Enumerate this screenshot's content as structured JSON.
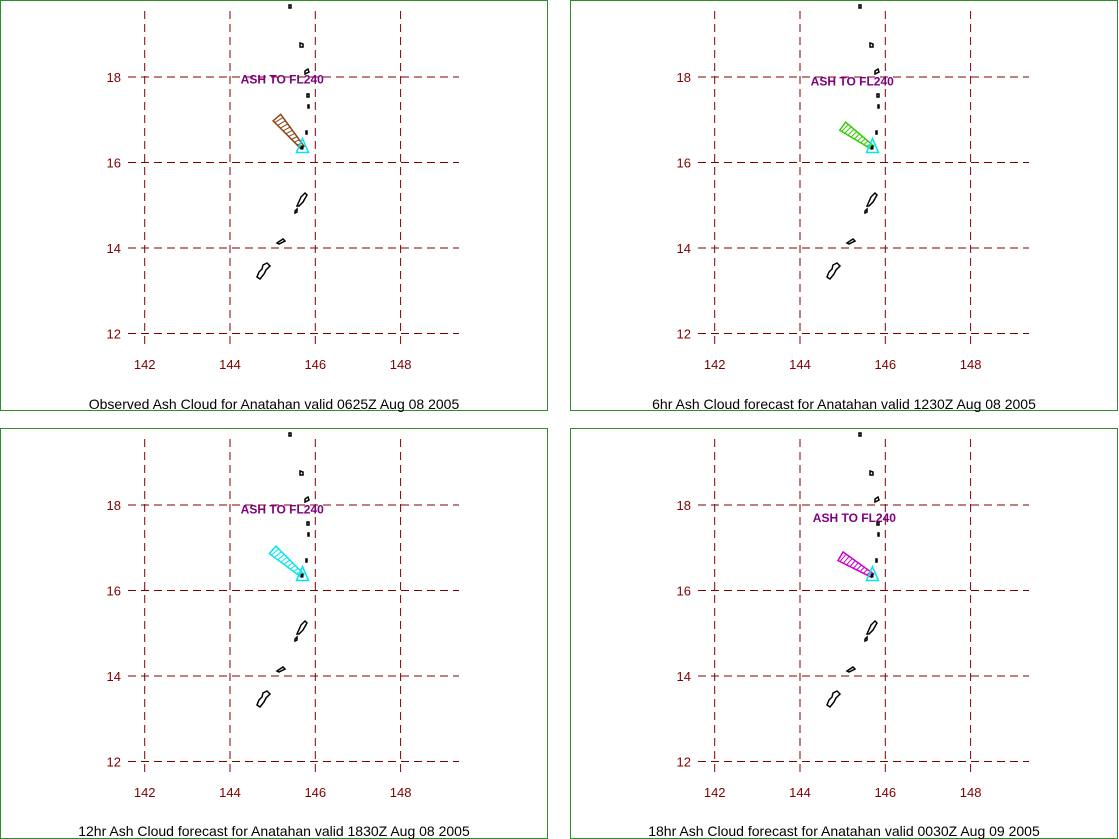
{
  "map": {
    "lon_ticks": [
      "142",
      "144",
      "146",
      "148"
    ],
    "lat_ticks": [
      "18",
      "16",
      "14",
      "12"
    ],
    "lon_values": [
      142,
      144,
      146,
      148
    ],
    "lat_values": [
      18,
      16,
      14,
      12
    ],
    "grid_color": "#800000",
    "volcano_marker_color": "#00e5ee"
  },
  "panels": [
    {
      "caption": "Observed Ash Cloud for Anatahan valid 0625Z Aug 08 2005",
      "ash_label": "ASH TO FL240",
      "cloud_color": "#8b4513",
      "cloud_tip": [
        145.1,
        17.05
      ],
      "label_pos": [
        144.25,
        17.85
      ]
    },
    {
      "caption": "6hr Ash Cloud forecast for Anatahan valid 1230Z Aug 08 2005",
      "ash_label": "ASH TO FL240",
      "cloud_color": "#33cc00",
      "cloud_tip": [
        145.0,
        16.85
      ],
      "label_pos": [
        144.25,
        17.8
      ]
    },
    {
      "caption": "12hr Ash Cloud forecast for Anatahan valid 1830Z Aug 08 2005",
      "ash_label": "ASH TO FL240",
      "cloud_color": "#00e5ee",
      "cloud_tip": [
        145.0,
        16.95
      ],
      "label_pos": [
        144.25,
        17.8
      ]
    },
    {
      "caption": "18hr Ash Cloud forecast for Anatahan valid 0030Z Aug 09 2005",
      "ash_label": "ASH TO FL240",
      "cloud_color": "#cc00cc",
      "cloud_tip": [
        144.95,
        16.8
      ],
      "label_pos": [
        144.3,
        17.6
      ]
    }
  ]
}
